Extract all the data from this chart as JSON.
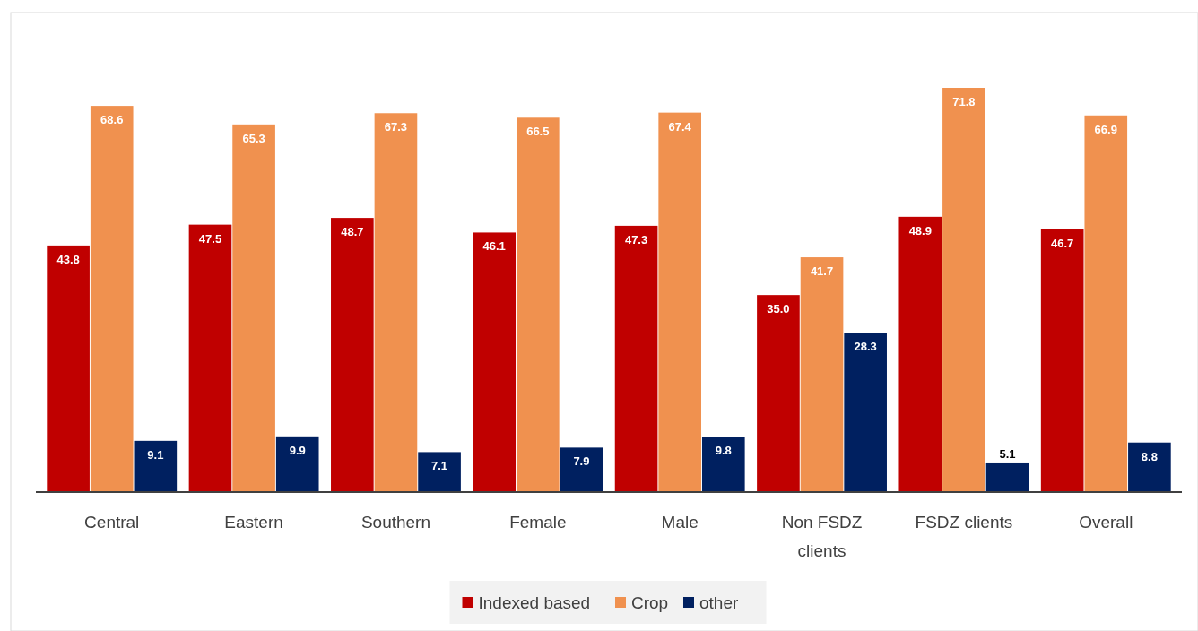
{
  "chart_data": {
    "type": "bar",
    "categories": [
      "Central",
      "Eastern",
      "Southern",
      "Female",
      "Male",
      "Non FSDZ clients",
      "FSDZ clients",
      "Overall"
    ],
    "series": [
      {
        "name": "Indexed based",
        "color": "#c00000",
        "values": [
          43.8,
          47.5,
          48.7,
          46.1,
          47.3,
          35.0,
          48.9,
          46.7
        ],
        "value_labels": [
          "43.8",
          "47.5",
          "48.7",
          "46.1",
          "47.3",
          "35.0",
          "48.9",
          "46.7"
        ]
      },
      {
        "name": "Crop",
        "color": "#f0914f",
        "values": [
          68.6,
          65.3,
          67.3,
          66.5,
          67.4,
          41.7,
          71.8,
          66.9
        ],
        "value_labels": [
          "68.6",
          "65.3",
          "67.3",
          "66.5",
          "67.4",
          "41.7",
          "71.8",
          "66.9"
        ]
      },
      {
        "name": "other",
        "color": "#002060",
        "values": [
          9.1,
          9.9,
          7.1,
          7.9,
          9.8,
          28.3,
          5.1,
          8.8
        ],
        "value_labels": [
          "9.1",
          "9.9",
          "7.1",
          "7.9",
          "9.8",
          "28.3",
          "5.1",
          "8.8"
        ]
      }
    ],
    "legend": "bottom"
  }
}
